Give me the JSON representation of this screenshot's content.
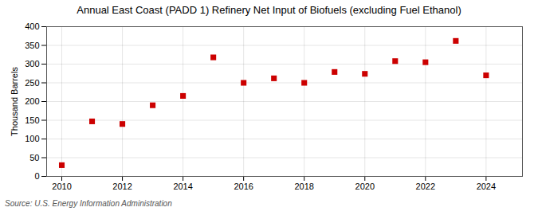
{
  "chart_data": {
    "type": "scatter",
    "title": "Annual East Coast (PADD 1) Refinery Net Input of Biofuels (excluding Fuel Ethanol)",
    "ylabel": "Thousand Barrels",
    "source": "Source: U.S. Energy Information Administration",
    "x": [
      2010,
      2011,
      2012,
      2013,
      2014,
      2015,
      2016,
      2017,
      2018,
      2019,
      2020,
      2021,
      2022,
      2023,
      2024
    ],
    "values": [
      30,
      147,
      140,
      190,
      215,
      318,
      250,
      262,
      250,
      279,
      274,
      308,
      305,
      362,
      270
    ],
    "color": "#cc0000",
    "marker": "square",
    "xlim": [
      2009.5,
      2025.2
    ],
    "xticks": [
      2010,
      2012,
      2014,
      2016,
      2018,
      2020,
      2022,
      2024
    ],
    "ylim": [
      0,
      400
    ],
    "yticks": [
      0,
      50,
      100,
      150,
      200,
      250,
      300,
      350,
      400
    ],
    "grid": true
  }
}
